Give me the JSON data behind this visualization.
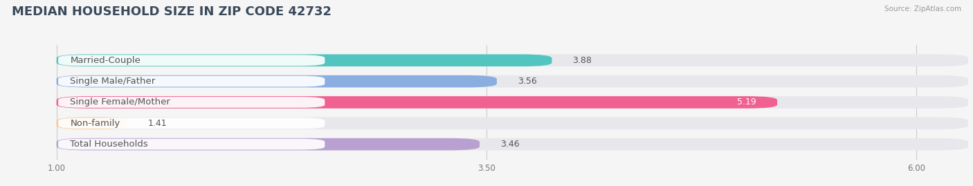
{
  "title": "MEDIAN HOUSEHOLD SIZE IN ZIP CODE 42732",
  "source": "Source: ZipAtlas.com",
  "categories": [
    "Married-Couple",
    "Single Male/Father",
    "Single Female/Mother",
    "Non-family",
    "Total Households"
  ],
  "values": [
    3.88,
    3.56,
    5.19,
    1.41,
    3.46
  ],
  "bar_colors": [
    "#52c5c0",
    "#8aaee0",
    "#f06090",
    "#f5c898",
    "#b8a0d0"
  ],
  "xlim_min": 0.7,
  "xlim_max": 6.3,
  "xstart": 1.0,
  "xticks": [
    1.0,
    3.5,
    6.0
  ],
  "xtick_labels": [
    "1.00",
    "3.50",
    "6.00"
  ],
  "background_color": "#f5f5f5",
  "bar_bg_color": "#e8e8ec",
  "title_fontsize": 13,
  "label_fontsize": 9.5,
  "value_fontsize": 9
}
